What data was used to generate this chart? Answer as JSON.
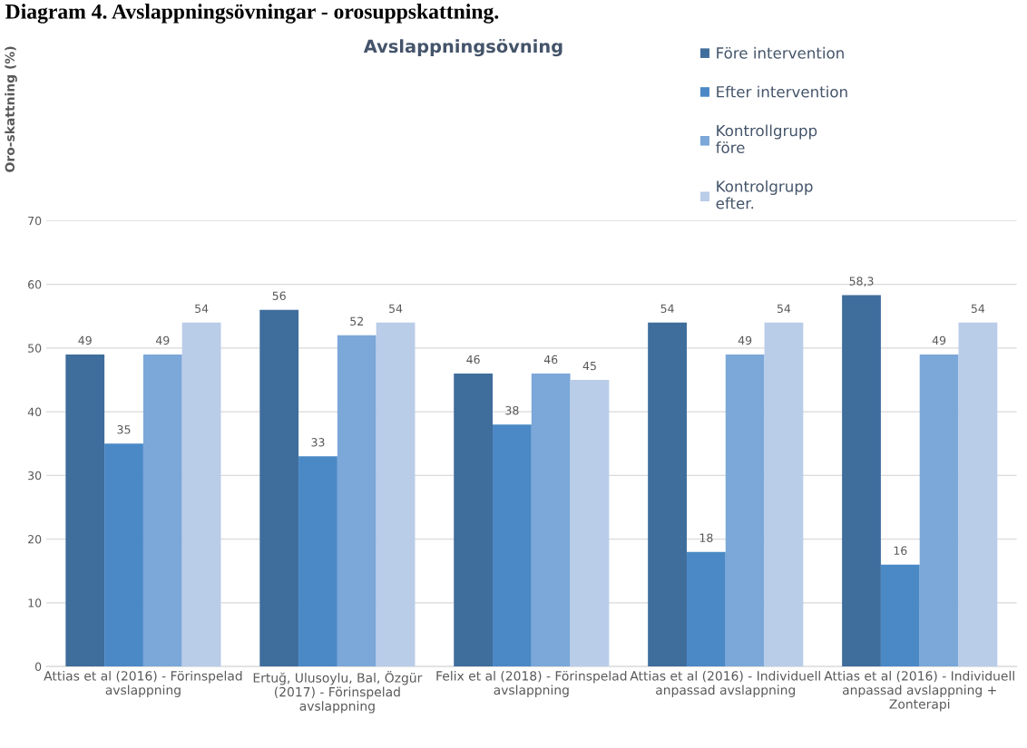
{
  "chart_data": {
    "type": "bar",
    "title": "Avslappningsövning",
    "ylabel": "Oro-skattning (%)",
    "annotations": [
      "Diagram 4. Avslappningsövningar - orosuppskattning."
    ],
    "categories": [
      "Attias et al (2016) - Förinspelad\navslappning",
      "Ertuğ, Ulusoylu, Bal, Özgür\n(2017) - Förinspelad\navslappning",
      "Felix et al (2018) - Förinspelad\navslappning",
      "Attias et al (2016) - Individuell\nanpassad avslappning",
      "Attias et al (2016) - Individuell\nanpassad avslappning +\nZonterapi"
    ],
    "series": [
      {
        "name": "Före intervention",
        "color": "#3f6d9c",
        "values": [
          49,
          56,
          46,
          54,
          58.3
        ],
        "value_labels": [
          "49",
          "56",
          "46",
          "54",
          "58,3"
        ]
      },
      {
        "name": "Efter intervention",
        "color": "#4a89c6",
        "values": [
          35,
          33,
          38,
          18,
          16
        ],
        "value_labels": [
          "35",
          "33",
          "38",
          "18",
          "16"
        ]
      },
      {
        "name": "Kontrollgrupp\nföre",
        "color": "#7ba7d9",
        "values": [
          49,
          52,
          46,
          49,
          49
        ],
        "value_labels": [
          "49",
          "52",
          "46",
          "49",
          "49"
        ]
      },
      {
        "name": "Kontrolgrupp\nefter.",
        "color": "#b9cce8",
        "values": [
          54,
          54,
          45,
          54,
          54
        ],
        "value_labels": [
          "54",
          "54",
          "45",
          "54",
          "54"
        ]
      }
    ],
    "ylim": [
      0,
      70
    ],
    "yticks": [
      0,
      10,
      20,
      30,
      40,
      50,
      60,
      70
    ],
    "grid": "y",
    "legend": "top right"
  }
}
